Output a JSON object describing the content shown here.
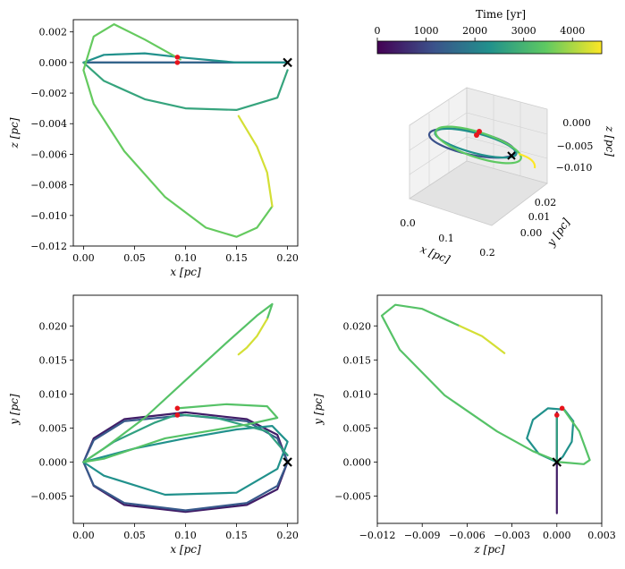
{
  "colorbar": {
    "label": "Time [yr]",
    "ticks": [
      "0",
      "1000",
      "2000",
      "3000",
      "4000"
    ],
    "tick_values": [
      0,
      1000,
      2000,
      3000,
      4000
    ],
    "range": [
      0,
      4600
    ],
    "colormap": [
      "#440154",
      "#3b528b",
      "#21918c",
      "#5ec962",
      "#fde725"
    ]
  },
  "chart_data": [
    {
      "type": "line",
      "panel": "top-left",
      "xlabel": "x [pc]",
      "ylabel": "z [pc]",
      "xlim": [
        -0.01,
        0.21
      ],
      "ylim": [
        -0.012,
        0.0028
      ],
      "xticks": [
        "0.00",
        "0.05",
        "0.10",
        "0.15",
        "0.20"
      ],
      "xtick_values": [
        0.0,
        0.05,
        0.1,
        0.15,
        0.2
      ],
      "yticks": [
        "0.002",
        "0.000",
        "−0.002",
        "−0.004",
        "−0.006",
        "−0.008",
        "−0.010",
        "−0.012"
      ],
      "ytick_values": [
        0.002,
        0.0,
        -0.002,
        -0.004,
        -0.006,
        -0.008,
        -0.01,
        -0.012
      ],
      "segments": [
        {
          "t": 500,
          "points": [
            [
              0.2,
              0.0
            ],
            [
              0.0,
              0.0
            ]
          ]
        },
        {
          "t": 1500,
          "points": [
            [
              0.0,
              0.0
            ],
            [
              0.1,
              0.0
            ],
            [
              0.2,
              0.0
            ]
          ]
        },
        {
          "t": 2300,
          "points": [
            [
              0.0,
              0.0
            ],
            [
              0.02,
              0.0005
            ],
            [
              0.06,
              0.0006
            ],
            [
              0.1,
              0.0003
            ],
            [
              0.15,
              0.0
            ],
            [
              0.2,
              0.0
            ]
          ]
        },
        {
          "t": 2700,
          "points": [
            [
              0.0,
              0.0
            ],
            [
              0.02,
              -0.0012
            ],
            [
              0.06,
              -0.0024
            ],
            [
              0.1,
              -0.003
            ],
            [
              0.15,
              -0.0031
            ],
            [
              0.19,
              -0.0023
            ],
            [
              0.2,
              -0.0005
            ]
          ]
        },
        {
          "t": 3500,
          "points": [
            [
              0.095,
              0.0002
            ],
            [
              0.06,
              0.0015
            ],
            [
              0.03,
              0.0025
            ],
            [
              0.01,
              0.0017
            ],
            [
              0.0,
              -0.0005
            ],
            [
              0.01,
              -0.0027
            ],
            [
              0.04,
              -0.0058
            ],
            [
              0.08,
              -0.0088
            ],
            [
              0.12,
              -0.0108
            ],
            [
              0.15,
              -0.0114
            ],
            [
              0.17,
              -0.0108
            ],
            [
              0.185,
              -0.0094
            ]
          ]
        },
        {
          "t": 4300,
          "points": [
            [
              0.185,
              -0.0094
            ],
            [
              0.18,
              -0.0072
            ],
            [
              0.17,
              -0.0055
            ],
            [
              0.152,
              -0.0035
            ]
          ]
        }
      ],
      "red_points": [
        [
          0.092,
          0.00035
        ],
        [
          0.092,
          0.0
        ]
      ],
      "start_marker": [
        0.2,
        0.0
      ]
    },
    {
      "type": "line",
      "panel": "bottom-left",
      "xlabel": "x [pc]",
      "ylabel": "y [pc]",
      "xlim": [
        -0.01,
        0.21
      ],
      "ylim": [
        -0.009,
        0.0245
      ],
      "xticks": [
        "0.00",
        "0.05",
        "0.10",
        "0.15",
        "0.20"
      ],
      "xtick_values": [
        0.0,
        0.05,
        0.1,
        0.15,
        0.2
      ],
      "yticks": [
        "0.020",
        "0.015",
        "0.010",
        "0.005",
        "0.000",
        "−0.005"
      ],
      "ytick_values": [
        0.02,
        0.015,
        0.01,
        0.005,
        0.0,
        -0.005
      ],
      "segments": [
        {
          "t": 400,
          "points": [
            [
              0.2,
              0.0
            ],
            [
              0.19,
              0.004
            ],
            [
              0.16,
              0.0063
            ],
            [
              0.1,
              0.0073
            ],
            [
              0.04,
              0.0063
            ],
            [
              0.01,
              0.0035
            ],
            [
              0.0,
              0.0
            ],
            [
              0.01,
              -0.0035
            ],
            [
              0.04,
              -0.0063
            ],
            [
              0.1,
              -0.0073
            ],
            [
              0.16,
              -0.0063
            ],
            [
              0.19,
              -0.004
            ],
            [
              0.2,
              0.0
            ]
          ]
        },
        {
          "t": 1300,
          "points": [
            [
              0.2,
              0.0
            ],
            [
              0.19,
              0.0035
            ],
            [
              0.16,
              0.006
            ],
            [
              0.1,
              0.0069
            ],
            [
              0.04,
              0.006
            ],
            [
              0.01,
              0.0032
            ],
            [
              0.0,
              0.0
            ],
            [
              0.01,
              -0.0034
            ],
            [
              0.04,
              -0.006
            ],
            [
              0.1,
              -0.0071
            ],
            [
              0.16,
              -0.006
            ],
            [
              0.19,
              -0.0035
            ],
            [
              0.2,
              0.0
            ]
          ]
        },
        {
          "t": 2300,
          "points": [
            [
              0.0,
              0.0
            ],
            [
              0.05,
              0.002
            ],
            [
              0.1,
              0.0035
            ],
            [
              0.15,
              0.0048
            ],
            [
              0.185,
              0.0053
            ],
            [
              0.2,
              0.003
            ],
            [
              0.19,
              -0.001
            ],
            [
              0.15,
              -0.0045
            ],
            [
              0.08,
              -0.0048
            ],
            [
              0.02,
              -0.002
            ],
            [
              0.0,
              0.0
            ]
          ]
        },
        {
          "t": 2600,
          "points": [
            [
              0.0,
              0.0
            ],
            [
              0.03,
              0.003
            ],
            [
              0.07,
              0.0058
            ],
            [
              0.092,
              0.007
            ],
            [
              0.13,
              0.0065
            ],
            [
              0.18,
              0.0045
            ],
            [
              0.2,
              0.001
            ]
          ]
        },
        {
          "t": 3300,
          "points": [
            [
              0.092,
              0.0079
            ],
            [
              0.14,
              0.0085
            ],
            [
              0.18,
              0.0082
            ],
            [
              0.19,
              0.0065
            ],
            [
              0.16,
              0.0055
            ],
            [
              0.08,
              0.0035
            ],
            [
              0.02,
              0.0005
            ],
            [
              0.0,
              0.0
            ],
            [
              0.02,
              0.002
            ],
            [
              0.06,
              0.0065
            ],
            [
              0.1,
              0.012
            ],
            [
              0.14,
              0.0175
            ],
            [
              0.17,
              0.0215
            ],
            [
              0.185,
              0.0232
            ],
            [
              0.18,
              0.021
            ]
          ]
        },
        {
          "t": 4300,
          "points": [
            [
              0.18,
              0.021
            ],
            [
              0.17,
              0.0185
            ],
            [
              0.16,
              0.0168
            ],
            [
              0.152,
              0.0158
            ]
          ]
        }
      ],
      "red_points": [
        [
          0.092,
          0.0079
        ],
        [
          0.092,
          0.0069
        ]
      ],
      "start_marker": [
        0.2,
        0.0
      ]
    },
    {
      "type": "line",
      "panel": "bottom-right",
      "xlabel": "z [pc]",
      "ylabel": "y [pc]",
      "xlim": [
        -0.012,
        0.003
      ],
      "ylim": [
        -0.009,
        0.0245
      ],
      "xticks": [
        "−0.012",
        "−0.009",
        "−0.006",
        "−0.003",
        "0.000",
        "0.003"
      ],
      "xtick_values": [
        -0.012,
        -0.009,
        -0.006,
        -0.003,
        0.0,
        0.003
      ],
      "yticks": [
        "0.020",
        "0.015",
        "0.010",
        "0.005",
        "0.000",
        "−0.005"
      ],
      "ytick_values": [
        0.02,
        0.015,
        0.01,
        0.005,
        0.0,
        -0.005
      ],
      "segments": [
        {
          "t": 400,
          "points": [
            [
              0.0,
              0.0
            ],
            [
              0.0,
              -0.0075
            ],
            [
              0.0,
              0.0073
            ],
            [
              0.0,
              0.0
            ]
          ]
        },
        {
          "t": 2300,
          "points": [
            [
              0.0,
              0.0
            ],
            [
              -0.0012,
              0.0012
            ],
            [
              -0.002,
              0.0035
            ],
            [
              -0.0016,
              0.0062
            ],
            [
              -0.0006,
              0.0079
            ],
            [
              0.0005,
              0.0077
            ],
            [
              0.0011,
              0.006
            ],
            [
              0.001,
              0.003
            ],
            [
              0.0004,
              0.0008
            ],
            [
              0.0,
              0.0
            ]
          ]
        },
        {
          "t": 2600,
          "points": [
            [
              0.0,
              0.0
            ],
            [
              0.0,
              0.003
            ],
            [
              0.0,
              0.0069
            ]
          ]
        },
        {
          "t": 3300,
          "points": [
            [
              0.0004,
              0.0079
            ],
            [
              0.0015,
              0.0045
            ],
            [
              0.0022,
              0.0003
            ],
            [
              0.0018,
              -0.0003
            ],
            [
              0.0002,
              0.0
            ],
            [
              -0.0016,
              0.0016
            ],
            [
              -0.004,
              0.0045
            ],
            [
              -0.0075,
              0.0098
            ],
            [
              -0.0105,
              0.0165
            ],
            [
              -0.0117,
              0.0215
            ],
            [
              -0.0108,
              0.0231
            ],
            [
              -0.009,
              0.0225
            ],
            [
              -0.0065,
              0.02
            ]
          ]
        },
        {
          "t": 4300,
          "points": [
            [
              -0.0065,
              0.02
            ],
            [
              -0.005,
              0.0185
            ],
            [
              -0.0035,
              0.016
            ]
          ]
        }
      ],
      "red_points": [
        [
          0.00035,
          0.0079
        ],
        [
          0.0,
          0.0069
        ]
      ],
      "start_marker": [
        0.0,
        0.0
      ]
    },
    {
      "type": "line",
      "panel": "top-right-3d",
      "xlabel": "x [pc]",
      "ylabel": "y [pc]",
      "zlabel": "z [pc]",
      "xticks": [
        "0.0",
        "0.1",
        "0.2"
      ],
      "yticks": [
        "0.00",
        "0.01",
        "0.02"
      ],
      "zticks": [
        "0.000",
        "−0.005",
        "−0.010"
      ]
    }
  ]
}
